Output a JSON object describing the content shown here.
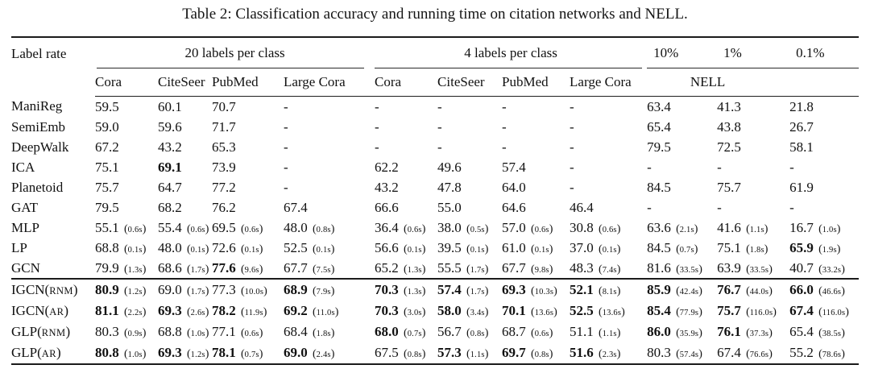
{
  "title": "Table 2: Classification accuracy and running time on citation networks and NELL.",
  "header": {
    "corner": "Label rate",
    "group1": {
      "label": "20 labels per class",
      "cols": [
        "Cora",
        "CiteSeer",
        "PubMed",
        "Large Cora"
      ]
    },
    "group2": {
      "label": "4 labels per class",
      "cols": [
        "Cora",
        "CiteSeer",
        "PubMed",
        "Large Cora"
      ]
    },
    "group3": {
      "rates": [
        "10%",
        "1%",
        "0.1%"
      ],
      "label": "NELL"
    }
  },
  "sections": [
    {
      "rows": [
        {
          "method": "ManiReg",
          "variant": null,
          "cells": [
            {
              "v": "59.5"
            },
            {
              "v": "60.1"
            },
            {
              "v": "70.7"
            },
            {
              "v": "-"
            },
            {
              "v": "-"
            },
            {
              "v": "-"
            },
            {
              "v": "-"
            },
            {
              "v": "-"
            },
            {
              "v": "63.4"
            },
            {
              "v": "41.3"
            },
            {
              "v": "21.8"
            }
          ]
        },
        {
          "method": "SemiEmb",
          "variant": null,
          "cells": [
            {
              "v": "59.0"
            },
            {
              "v": "59.6"
            },
            {
              "v": "71.7"
            },
            {
              "v": "-"
            },
            {
              "v": "-"
            },
            {
              "v": "-"
            },
            {
              "v": "-"
            },
            {
              "v": "-"
            },
            {
              "v": "65.4"
            },
            {
              "v": "43.8"
            },
            {
              "v": "26.7"
            }
          ]
        },
        {
          "method": "DeepWalk",
          "variant": null,
          "cells": [
            {
              "v": "67.2"
            },
            {
              "v": "43.2"
            },
            {
              "v": "65.3"
            },
            {
              "v": "-"
            },
            {
              "v": "-"
            },
            {
              "v": "-"
            },
            {
              "v": "-"
            },
            {
              "v": "-"
            },
            {
              "v": "79.5"
            },
            {
              "v": "72.5"
            },
            {
              "v": "58.1"
            }
          ]
        },
        {
          "method": "ICA",
          "variant": null,
          "cells": [
            {
              "v": "75.1"
            },
            {
              "v": "69.1",
              "b": true
            },
            {
              "v": "73.9"
            },
            {
              "v": "-"
            },
            {
              "v": "62.2"
            },
            {
              "v": "49.6"
            },
            {
              "v": "57.4"
            },
            {
              "v": "-"
            },
            {
              "v": "-"
            },
            {
              "v": "-"
            },
            {
              "v": "-"
            }
          ]
        },
        {
          "method": "Planetoid",
          "variant": null,
          "cells": [
            {
              "v": "75.7"
            },
            {
              "v": "64.7"
            },
            {
              "v": "77.2"
            },
            {
              "v": "-"
            },
            {
              "v": "43.2"
            },
            {
              "v": "47.8"
            },
            {
              "v": "64.0"
            },
            {
              "v": "-"
            },
            {
              "v": "84.5"
            },
            {
              "v": "75.7"
            },
            {
              "v": "61.9"
            }
          ]
        },
        {
          "method": "GAT",
          "variant": null,
          "cells": [
            {
              "v": "79.5"
            },
            {
              "v": "68.2"
            },
            {
              "v": "76.2"
            },
            {
              "v": "67.4"
            },
            {
              "v": "66.6"
            },
            {
              "v": "55.0"
            },
            {
              "v": "64.6"
            },
            {
              "v": "46.4"
            },
            {
              "v": "-"
            },
            {
              "v": "-"
            },
            {
              "v": "-"
            }
          ]
        },
        {
          "method": "MLP",
          "variant": null,
          "cells": [
            {
              "v": "55.1",
              "t": "0.6s"
            },
            {
              "v": "55.4",
              "t": "0.6s"
            },
            {
              "v": "69.5",
              "t": "0.6s"
            },
            {
              "v": "48.0",
              "t": "0.8s"
            },
            {
              "v": "36.4",
              "t": "0.6s"
            },
            {
              "v": "38.0",
              "t": "0.5s"
            },
            {
              "v": "57.0",
              "t": "0.6s"
            },
            {
              "v": "30.8",
              "t": "0.6s"
            },
            {
              "v": "63.6",
              "t": "2.1s"
            },
            {
              "v": "41.6",
              "t": "1.1s"
            },
            {
              "v": "16.7",
              "t": "1.0s"
            }
          ]
        },
        {
          "method": "LP",
          "variant": null,
          "cells": [
            {
              "v": "68.8",
              "t": "0.1s"
            },
            {
              "v": "48.0",
              "t": "0.1s"
            },
            {
              "v": "72.6",
              "t": "0.1s"
            },
            {
              "v": "52.5",
              "t": "0.1s"
            },
            {
              "v": "56.6",
              "t": "0.1s"
            },
            {
              "v": "39.5",
              "t": "0.1s"
            },
            {
              "v": "61.0",
              "t": "0.1s"
            },
            {
              "v": "37.0",
              "t": "0.1s"
            },
            {
              "v": "84.5",
              "t": "0.7s"
            },
            {
              "v": "75.1",
              "t": "1.8s"
            },
            {
              "v": "65.9",
              "t": "1.9s",
              "b": true
            }
          ]
        },
        {
          "method": "GCN",
          "variant": null,
          "cells": [
            {
              "v": "79.9",
              "t": "1.3s"
            },
            {
              "v": "68.6",
              "t": "1.7s"
            },
            {
              "v": "77.6",
              "t": "9.6s",
              "b": true
            },
            {
              "v": "67.7",
              "t": "7.5s"
            },
            {
              "v": "65.2",
              "t": "1.3s"
            },
            {
              "v": "55.5",
              "t": "1.7s"
            },
            {
              "v": "67.7",
              "t": "9.8s"
            },
            {
              "v": "48.3",
              "t": "7.4s"
            },
            {
              "v": "81.6",
              "t": "33.5s"
            },
            {
              "v": "63.9",
              "t": "33.5s"
            },
            {
              "v": "40.7",
              "t": "33.2s"
            }
          ]
        }
      ]
    },
    {
      "rows": [
        {
          "method": "IGCN",
          "variant": "RNM",
          "cells": [
            {
              "v": "80.9",
              "t": "1.2s",
              "b": true
            },
            {
              "v": "69.0",
              "t": "1.7s"
            },
            {
              "v": "77.3",
              "t": "10.0s"
            },
            {
              "v": "68.9",
              "t": "7.9s",
              "b": true
            },
            {
              "v": "70.3",
              "t": "1.3s",
              "b": true
            },
            {
              "v": "57.4",
              "t": "1.7s",
              "b": true
            },
            {
              "v": "69.3",
              "t": "10.3s",
              "b": true
            },
            {
              "v": "52.1",
              "t": "8.1s",
              "b": true
            },
            {
              "v": "85.9",
              "t": "42.4s",
              "b": true
            },
            {
              "v": "76.7",
              "t": "44.0s",
              "b": true
            },
            {
              "v": "66.0",
              "t": "46.6s",
              "b": true
            }
          ]
        },
        {
          "method": "IGCN",
          "variant": "AR",
          "cells": [
            {
              "v": "81.1",
              "t": "2.2s",
              "b": true
            },
            {
              "v": "69.3",
              "t": "2.6s",
              "b": true
            },
            {
              "v": "78.2",
              "t": "11.9s",
              "b": true
            },
            {
              "v": "69.2",
              "t": "11.0s",
              "b": true
            },
            {
              "v": "70.3",
              "t": "3.0s",
              "b": true
            },
            {
              "v": "58.0",
              "t": "3.4s",
              "b": true
            },
            {
              "v": "70.1",
              "t": "13.6s",
              "b": true
            },
            {
              "v": "52.5",
              "t": "13.6s",
              "b": true
            },
            {
              "v": "85.4",
              "t": "77.9s",
              "b": true
            },
            {
              "v": "75.7",
              "t": "116.0s",
              "b": true
            },
            {
              "v": "67.4",
              "t": "116.0s",
              "b": true
            }
          ]
        },
        {
          "method": "GLP",
          "variant": "RNM",
          "cells": [
            {
              "v": "80.3",
              "t": "0.9s"
            },
            {
              "v": "68.8",
              "t": "1.0s"
            },
            {
              "v": "77.1",
              "t": "0.6s"
            },
            {
              "v": "68.4",
              "t": "1.8s"
            },
            {
              "v": "68.0",
              "t": "0.7s",
              "b": true
            },
            {
              "v": "56.7",
              "t": "0.8s"
            },
            {
              "v": "68.7",
              "t": "0.6s"
            },
            {
              "v": "51.1",
              "t": "1.1s"
            },
            {
              "v": "86.0",
              "t": "35.9s",
              "b": true
            },
            {
              "v": "76.1",
              "t": "37.3s",
              "b": true
            },
            {
              "v": "65.4",
              "t": "38.5s"
            }
          ]
        },
        {
          "method": "GLP",
          "variant": "AR",
          "cells": [
            {
              "v": "80.8",
              "t": "1.0s",
              "b": true
            },
            {
              "v": "69.3",
              "t": "1.2s",
              "b": true
            },
            {
              "v": "78.1",
              "t": "0.7s",
              "b": true
            },
            {
              "v": "69.0",
              "t": "2.4s",
              "b": true
            },
            {
              "v": "67.5",
              "t": "0.8s"
            },
            {
              "v": "57.3",
              "t": "1.1s",
              "b": true
            },
            {
              "v": "69.7",
              "t": "0.8s",
              "b": true
            },
            {
              "v": "51.6",
              "t": "2.3s",
              "b": true
            },
            {
              "v": "80.3",
              "t": "57.4s"
            },
            {
              "v": "67.4",
              "t": "76.6s"
            },
            {
              "v": "55.2",
              "t": "78.6s"
            }
          ]
        }
      ]
    }
  ]
}
